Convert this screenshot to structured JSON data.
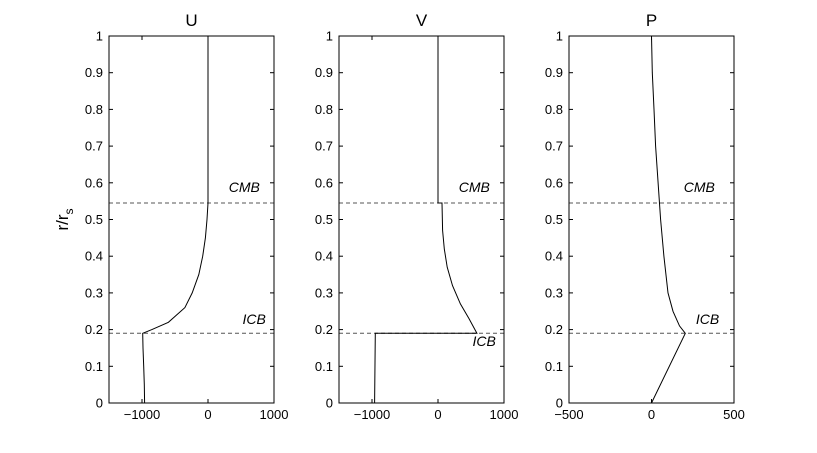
{
  "chart_data": [
    {
      "type": "line",
      "title": "U",
      "xlabel": "",
      "ylabel": "r/r_s",
      "xlim": [
        -1500,
        1000
      ],
      "ylim": [
        0,
        1
      ],
      "xticks": [
        -1000,
        0,
        1000
      ],
      "xtick_labels": [
        "−1000",
        "0",
        "1000"
      ],
      "yticks": [
        0,
        0.1,
        0.2,
        0.3,
        0.4,
        0.5,
        0.6,
        0.7,
        0.8,
        0.9,
        1
      ],
      "ytick_labels": [
        "0",
        "0.1",
        "0.2",
        "0.3",
        "0.4",
        "0.5",
        "0.6",
        "0.7",
        "0.8",
        "0.9",
        "1"
      ],
      "series": [
        {
          "values": [
            [
              -960,
              0
            ],
            [
              -965,
              0.05
            ],
            [
              -975,
              0.1
            ],
            [
              -985,
              0.15
            ],
            [
              -990,
              0.19
            ],
            [
              -850,
              0.2
            ],
            [
              -600,
              0.22
            ],
            [
              -350,
              0.26
            ],
            [
              -240,
              0.3
            ],
            [
              -140,
              0.35
            ],
            [
              -80,
              0.4
            ],
            [
              -40,
              0.45
            ],
            [
              -15,
              0.5
            ],
            [
              0,
              0.545
            ],
            [
              0,
              1
            ]
          ]
        }
      ],
      "hlines": [
        0.545,
        0.19
      ],
      "annotations": [
        {
          "text": "CMB",
          "x": 550,
          "y": 0.575
        },
        {
          "text": "ICB",
          "x": 700,
          "y": 0.215
        }
      ]
    },
    {
      "type": "line",
      "title": "V",
      "xlabel": "",
      "ylabel": "",
      "xlim": [
        -1500,
        1000
      ],
      "ylim": [
        0,
        1
      ],
      "xticks": [
        -1000,
        0,
        1000
      ],
      "xtick_labels": [
        "−1000",
        "0",
        "1000"
      ],
      "yticks": [
        0,
        0.1,
        0.2,
        0.3,
        0.4,
        0.5,
        0.6,
        0.7,
        0.8,
        0.9,
        1
      ],
      "ytick_labels": [
        "0",
        "0.1",
        "0.2",
        "0.3",
        "0.4",
        "0.5",
        "0.6",
        "0.7",
        "0.8",
        "0.9",
        "1"
      ],
      "series": [
        {
          "values": [
            [
              -960,
              0
            ],
            [
              -950,
              0.19
            ],
            [
              590,
              0.19
            ],
            [
              470,
              0.23
            ],
            [
              340,
              0.27
            ],
            [
              220,
              0.32
            ],
            [
              140,
              0.37
            ],
            [
              95,
              0.42
            ],
            [
              70,
              0.47
            ],
            [
              60,
              0.545
            ],
            [
              0,
              0.545
            ],
            [
              0,
              1
            ]
          ]
        }
      ],
      "hlines": [
        0.545,
        0.19
      ],
      "annotations": [
        {
          "text": "CMB",
          "x": 550,
          "y": 0.575
        },
        {
          "text": "ICB",
          "x": 700,
          "y": 0.155
        }
      ]
    },
    {
      "type": "line",
      "title": "P",
      "xlabel": "",
      "ylabel": "",
      "xlim": [
        -500,
        500
      ],
      "ylim": [
        0,
        1
      ],
      "xticks": [
        -500,
        0,
        500
      ],
      "xtick_labels": [
        "−500",
        "0",
        "500"
      ],
      "yticks": [
        0,
        0.1,
        0.2,
        0.3,
        0.4,
        0.5,
        0.6,
        0.7,
        0.8,
        0.9,
        1
      ],
      "ytick_labels": [
        "0",
        "0.1",
        "0.2",
        "0.3",
        "0.4",
        "0.5",
        "0.6",
        "0.7",
        "0.8",
        "0.9",
        "1"
      ],
      "series": [
        {
          "values": [
            [
              0,
              0
            ],
            [
              205,
              0.19
            ],
            [
              170,
              0.21
            ],
            [
              130,
              0.25
            ],
            [
              100,
              0.3
            ],
            [
              75,
              0.4
            ],
            [
              55,
              0.5
            ],
            [
              40,
              0.6
            ],
            [
              25,
              0.7
            ],
            [
              15,
              0.8
            ],
            [
              5,
              0.9
            ],
            [
              0,
              1
            ]
          ]
        }
      ],
      "hlines": [
        0.545,
        0.19
      ],
      "annotations": [
        {
          "text": "CMB",
          "x": 290,
          "y": 0.575
        },
        {
          "text": "ICB",
          "x": 340,
          "y": 0.215
        }
      ]
    }
  ]
}
